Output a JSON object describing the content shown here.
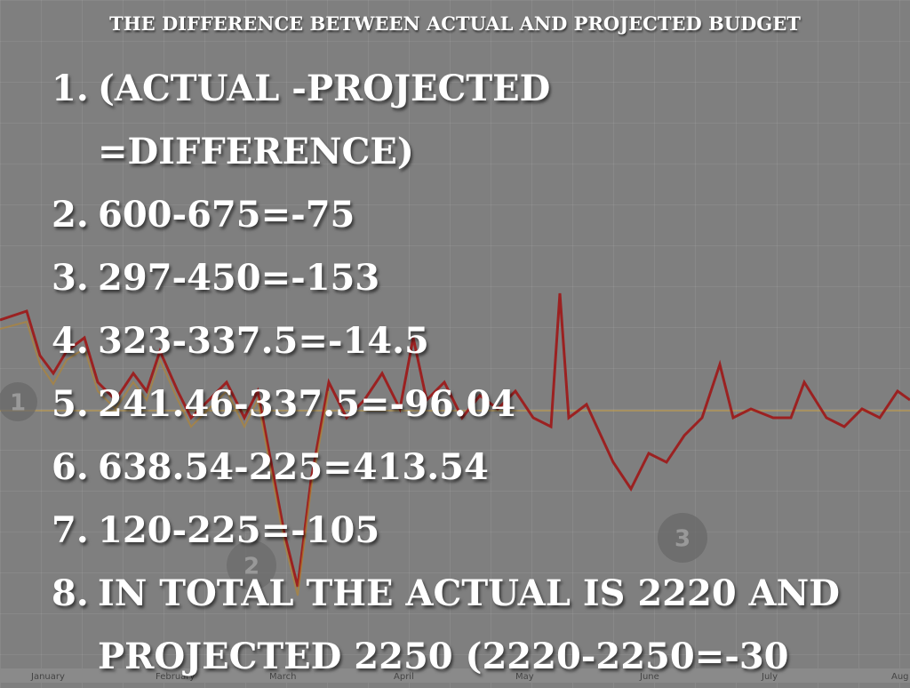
{
  "header": {
    "title": "THE DIFFERENCE BETWEEN ACTUAL AND PROJECTED BUDGET"
  },
  "items": [
    {
      "number": "1.",
      "lines": [
        "(ACTUAL -PROJECTED",
        "=DIFFERENCE)"
      ]
    },
    {
      "number": "2.",
      "lines": [
        "600-675=-75"
      ]
    },
    {
      "number": "3.",
      "lines": [
        "297-450=-153"
      ]
    },
    {
      "number": "4.",
      "lines": [
        "323-337.5=-14.5"
      ]
    },
    {
      "number": "5.",
      "lines": [
        "241.46-337.5=-96.04"
      ]
    },
    {
      "number": "6.",
      "lines": [
        "638.54-225=413.54"
      ]
    },
    {
      "number": "7.",
      "lines": [
        "120-225=-105"
      ]
    },
    {
      "number": "8.",
      "lines": [
        "IN TOTAL THE ACTUAL IS 2220 AND",
        "PROJECTED 2250 (2220-2250=-30"
      ]
    }
  ],
  "background": {
    "months": [
      "January",
      "February",
      "March",
      "April",
      "May",
      "June",
      "July",
      "Aug"
    ],
    "markers": [
      "1",
      "2",
      "3"
    ]
  }
}
